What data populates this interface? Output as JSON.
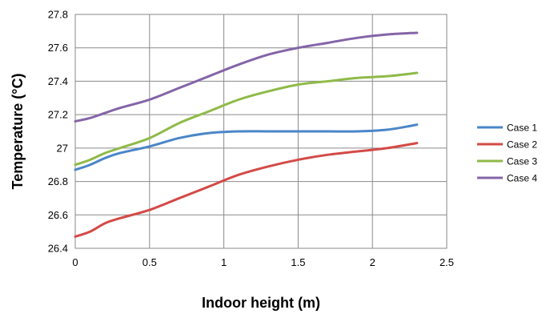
{
  "chart_data": {
    "type": "line",
    "title": "",
    "xlabel": "Indoor height (m)",
    "ylabel": "Temperature (°C)",
    "xlim": [
      0,
      2.5
    ],
    "ylim": [
      26.4,
      27.8
    ],
    "x_ticks": [
      "0",
      "0.5",
      "1",
      "1.5",
      "2",
      "2.5"
    ],
    "y_ticks": [
      "26.4",
      "26.6",
      "26.8",
      "27",
      "27.2",
      "27.4",
      "27.6",
      "27.8"
    ],
    "grid": true,
    "legend_position": "right",
    "x": [
      0,
      0.1,
      0.2,
      0.3,
      0.5,
      0.7,
      0.9,
      1.1,
      1.3,
      1.5,
      1.7,
      1.9,
      2.1,
      2.3
    ],
    "series": [
      {
        "name": "Case 1",
        "color": "#4a86c8",
        "values": [
          26.87,
          26.9,
          26.94,
          26.97,
          27.01,
          27.06,
          27.09,
          27.1,
          27.1,
          27.1,
          27.1,
          27.1,
          27.11,
          27.14
        ]
      },
      {
        "name": "Case 2",
        "color": "#d34a47",
        "values": [
          26.47,
          26.5,
          26.55,
          26.58,
          26.63,
          26.7,
          26.77,
          26.84,
          26.89,
          26.93,
          26.96,
          26.98,
          27.0,
          27.03
        ]
      },
      {
        "name": "Case 3",
        "color": "#8fba48",
        "values": [
          26.9,
          26.93,
          26.97,
          27.0,
          27.06,
          27.15,
          27.22,
          27.29,
          27.34,
          27.38,
          27.4,
          27.42,
          27.43,
          27.45
        ]
      },
      {
        "name": "Case 4",
        "color": "#8464a8",
        "values": [
          27.16,
          27.18,
          27.21,
          27.24,
          27.29,
          27.36,
          27.43,
          27.5,
          27.56,
          27.6,
          27.63,
          27.66,
          27.68,
          27.69
        ]
      }
    ]
  }
}
